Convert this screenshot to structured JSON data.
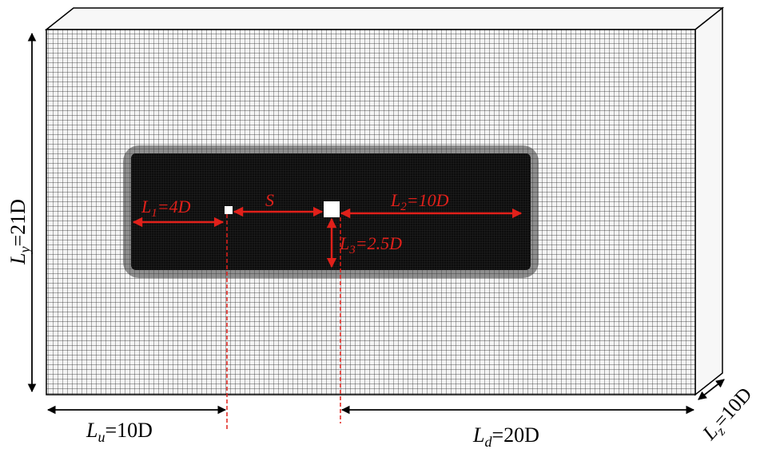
{
  "labels": {
    "ly": {
      "main": "L",
      "sub": "y",
      "rest": "=21D"
    },
    "lu": {
      "main": "L",
      "sub": "u",
      "rest": "=10D"
    },
    "ld": {
      "main": "L",
      "sub": "d",
      "rest": "=20D"
    },
    "lz": {
      "main": "L",
      "sub": "z",
      "rest": "=10D"
    },
    "l1": {
      "main": "L",
      "sub": "1",
      "rest": "=4D"
    },
    "l2": {
      "main": "L",
      "sub": "2",
      "rest": "=10D"
    },
    "l3": {
      "main": "L",
      "sub": "3",
      "rest": "=2.5D"
    },
    "s": "S"
  },
  "colors": {
    "mesh_line": "#1a1a1a",
    "dense_region": "#0a0a0a",
    "annotation": "#e1201a",
    "dimension": "#000000",
    "cylinder": "#ffffff"
  },
  "icons": {
    "small_cylinder": "square",
    "large_cylinder": "square"
  }
}
